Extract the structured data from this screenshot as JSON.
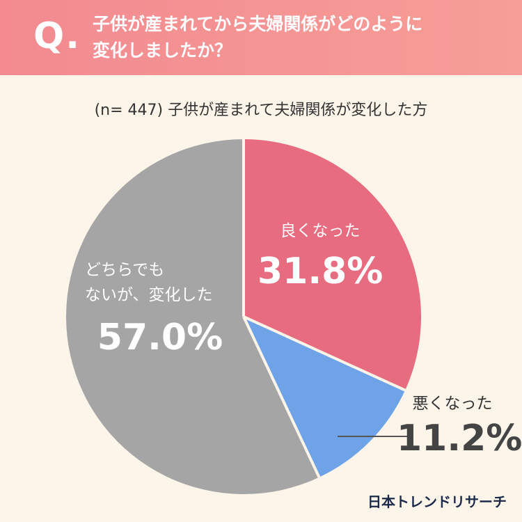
{
  "q_label": "Q.",
  "question": "子供が産まれてから夫婦関係がどのように\n変化しましたか？",
  "brand": "日本トレンドリサーチ",
  "chart_data": {
    "type": "pie",
    "subtitle": "(n= 447) 子供が産まれて夫婦関係が変化した方",
    "categories": [
      "良くなった",
      "悪くなった",
      "どちらでも\nないが、変化した"
    ],
    "values": [
      31.8,
      11.2,
      57.0
    ],
    "value_labels": [
      "31.8%",
      "11.2%",
      "57.0%"
    ],
    "colors": [
      "#e76c80",
      "#6ea3e8",
      "#a5a5a5"
    ]
  }
}
